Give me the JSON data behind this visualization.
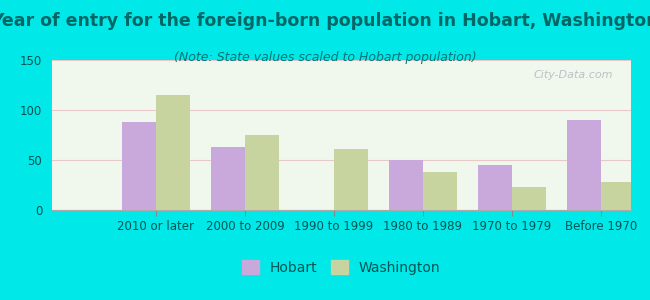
{
  "title": "Year of entry for the foreign-born population in Hobart, Washington",
  "subtitle": "(Note: State values scaled to Hobart population)",
  "categories": [
    "2010 or later",
    "2000 to 2009",
    "1990 to 1999",
    "1980 to 1989",
    "1970 to 1979",
    "Before 1970"
  ],
  "hobart_values": [
    88,
    63,
    0,
    50,
    45,
    90
  ],
  "washington_values": [
    115,
    75,
    61,
    38,
    23,
    28
  ],
  "hobart_color": "#c9a8dc",
  "washington_color": "#c8d4a0",
  "bar_width": 0.38,
  "ylim": [
    0,
    150
  ],
  "yticks": [
    0,
    50,
    100,
    150
  ],
  "background_color": "#00e8e8",
  "title_color": "#006666",
  "subtitle_color": "#007777",
  "tick_color": "#005555",
  "title_fontsize": 12.5,
  "subtitle_fontsize": 9,
  "tick_fontsize": 8.5,
  "legend_fontsize": 10,
  "watermark": "City-Data.com"
}
